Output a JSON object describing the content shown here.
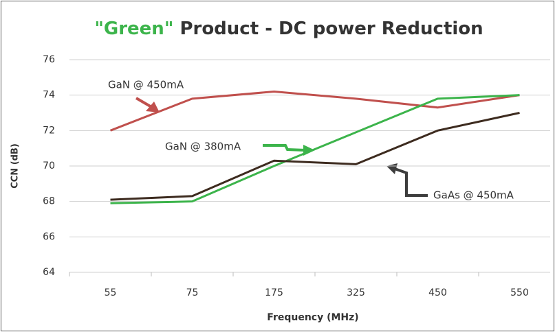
{
  "chart_data": {
    "type": "line",
    "title": {
      "highlight": "\"Green\"",
      "rest": "Product - DC power Reduction"
    },
    "x_label": "Frequency (MHz)",
    "y_label": "CCN (dB)",
    "categories": [
      "55",
      "75",
      "175",
      "325",
      "450",
      "550"
    ],
    "series": [
      {
        "name": "GaN @ 450mA",
        "color": "#c0504d",
        "values": [
          72,
          73.8,
          74.2,
          73.8,
          73.3,
          74
        ]
      },
      {
        "name": "GaN @ 380mA",
        "color": "#3cb44b",
        "values": [
          67.9,
          68.0,
          70.0,
          71.9,
          73.8,
          74.0
        ]
      },
      {
        "name": "GaAs @ 450mA",
        "color": "#3d2b1f",
        "values": [
          68.1,
          68.3,
          70.3,
          70.1,
          72.0,
          73.0
        ]
      }
    ],
    "ylim": [
      64,
      76
    ],
    "yticks": [
      64,
      66,
      68,
      70,
      72,
      74,
      76
    ],
    "grid": true
  }
}
